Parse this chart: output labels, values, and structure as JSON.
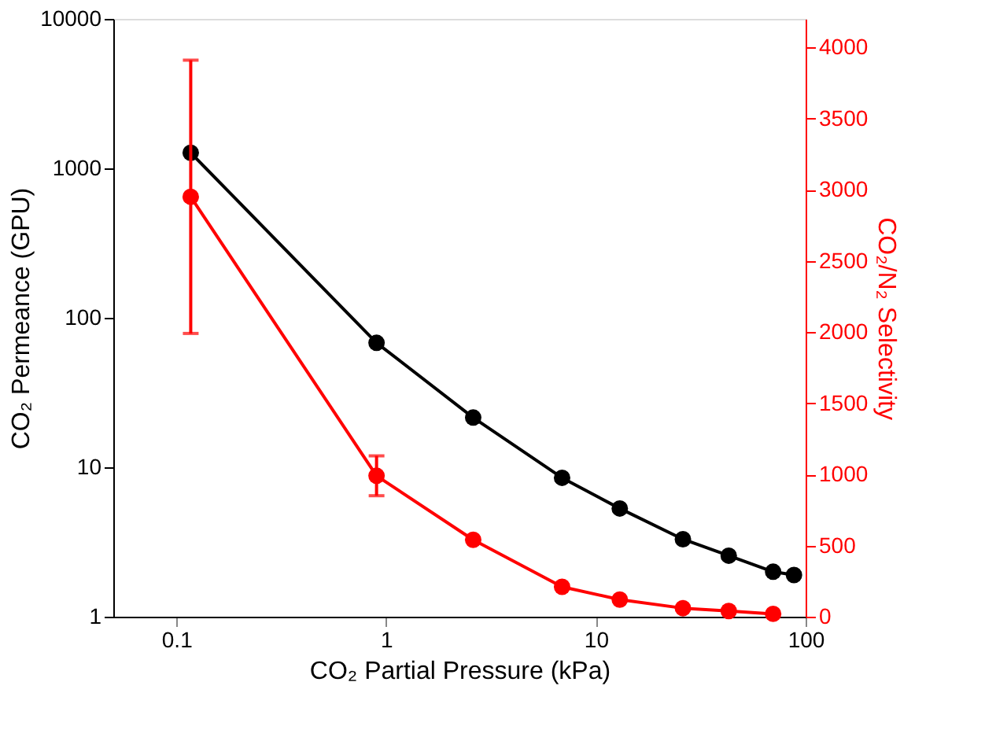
{
  "chart_data": {
    "type": "line",
    "xlabel": "CO₂ Partial Pressure (kPa)",
    "ylabel": "CO₂ Permeance (GPU)",
    "y2label": "CO₂/N₂ Selectivity",
    "log": "xy",
    "grid": false,
    "marker": "circle",
    "line_style": "solid",
    "xlim": [
      0.05,
      100
    ],
    "xticks": [
      0.1,
      1,
      10,
      100
    ],
    "ylim": [
      1,
      10000
    ],
    "yticks": [
      1,
      10,
      100,
      1000,
      10000
    ],
    "y2lim": [
      0,
      4200
    ],
    "y2ticks": [
      0,
      500,
      1000,
      1500,
      2000,
      2500,
      3000,
      3500,
      4000
    ],
    "series": [
      {
        "color": "#000000",
        "x": [
          0.117,
          0.9,
          2.6,
          6.9,
          13,
          26,
          43,
          70,
          88
        ],
        "values": [
          1270,
          68,
          21.5,
          8.5,
          5.3,
          3.3,
          2.56,
          2.0,
          1.9
        ]
      },
      {
        "color": "#ff0000",
        "axis": "y2",
        "x": [
          0.117,
          0.9,
          2.6,
          6.9,
          13,
          26,
          43,
          70
        ],
        "values": [
          2950,
          990,
          540,
          210,
          120,
          60,
          40,
          20
        ],
        "errors": [
          [
            1990,
            3910
          ],
          [
            850,
            1130
          ],
          null,
          null,
          null,
          null,
          null,
          null
        ]
      }
    ]
  }
}
